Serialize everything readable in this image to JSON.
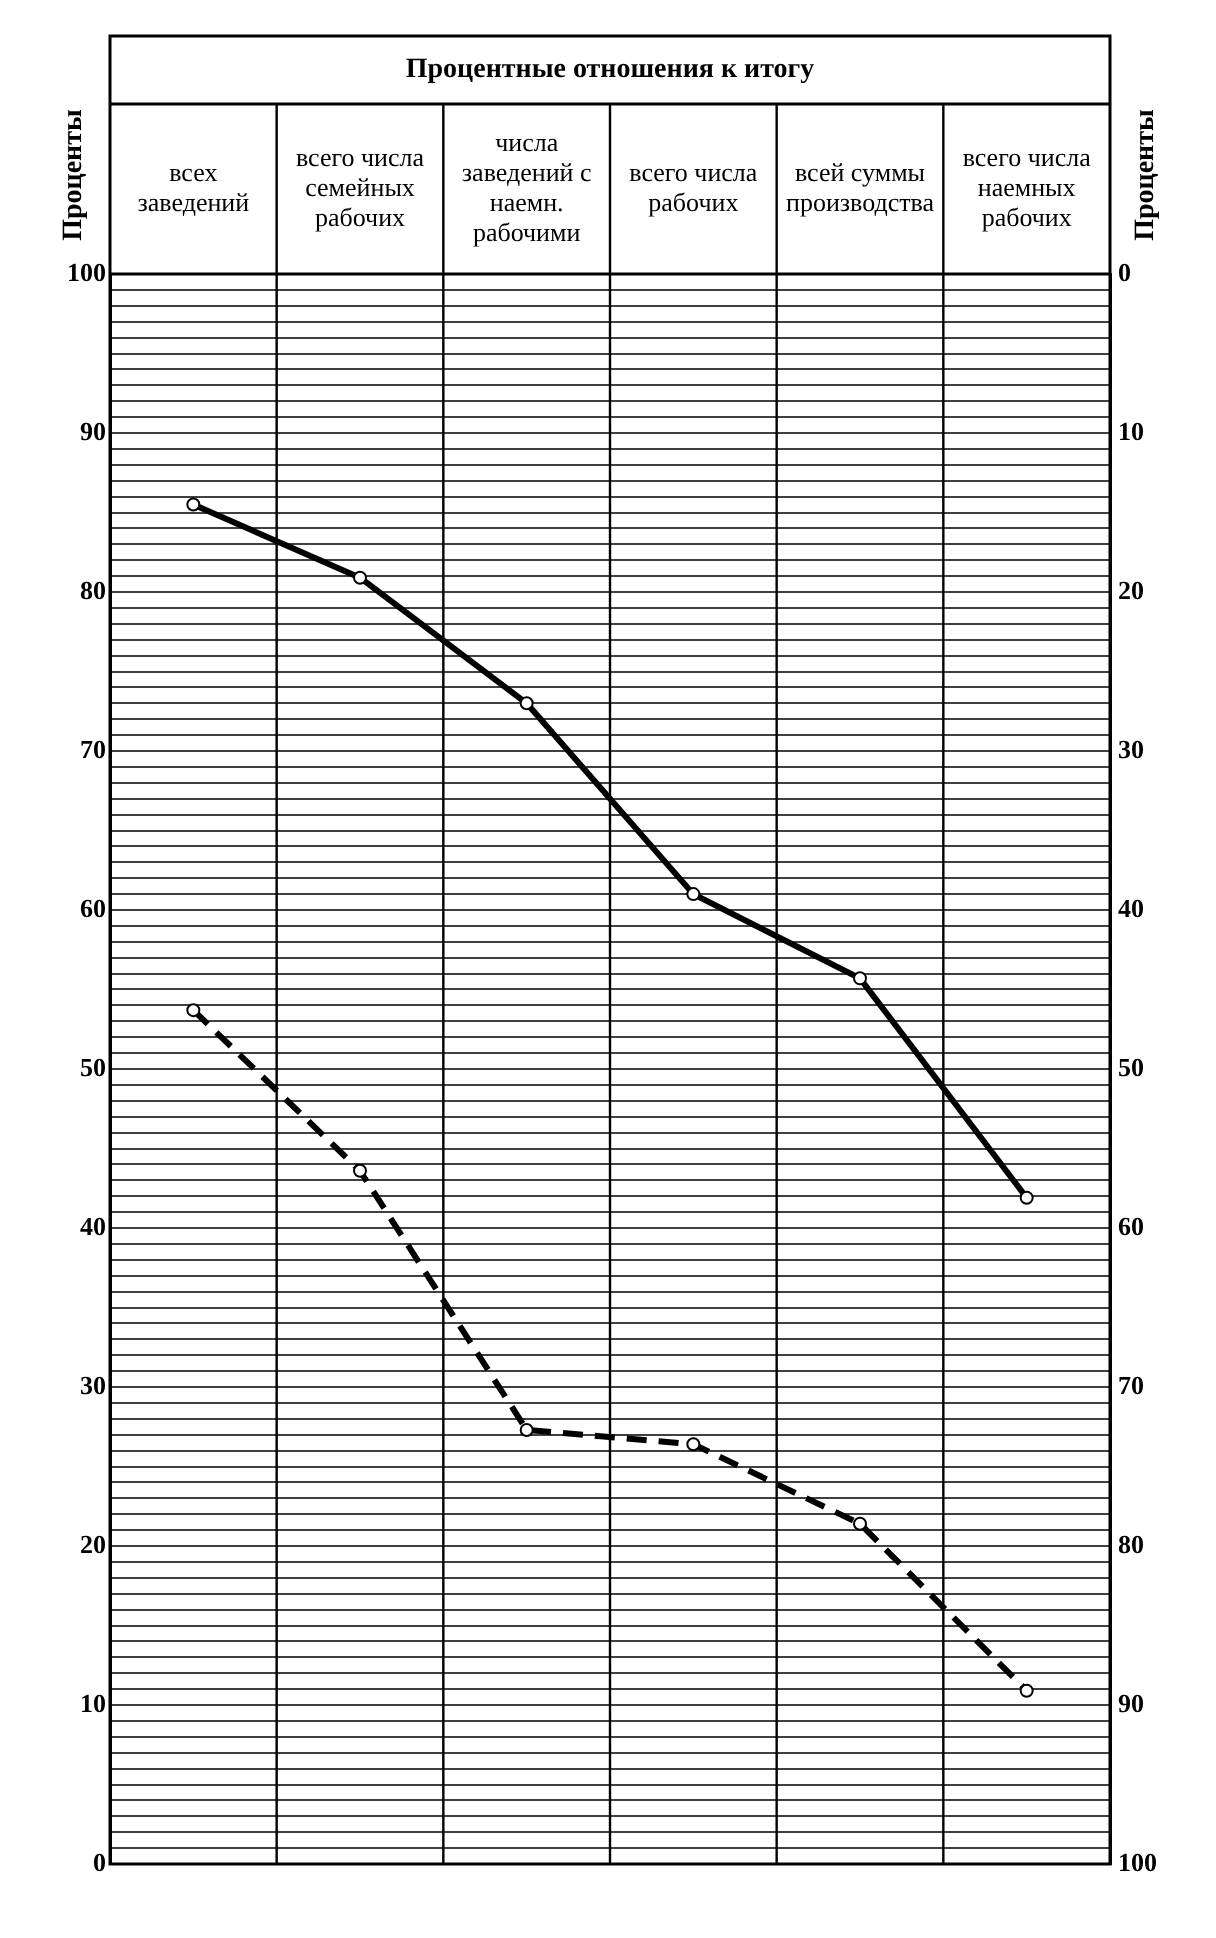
{
  "chart_data": {
    "type": "line",
    "title": "Процентные отношения к итогу",
    "categories": [
      "всех заведений",
      "всего числа семейных рабочих",
      "числа заведений с наемн. рабочими",
      "всего числа рабочих",
      "всей суммы производства",
      "всего числа наемных рабочих"
    ],
    "series": [
      {
        "color": "#000000",
        "values": [
          85.5,
          80.9,
          73.0,
          61.0,
          55.7,
          41.9
        ],
        "line_style": "solid"
      },
      {
        "color": "#000000",
        "values": [
          53.7,
          43.6,
          27.3,
          26.4,
          21.4,
          10.9
        ],
        "line_style": "dashed"
      }
    ],
    "ylabel": "Проценты",
    "y2label": "Проценты",
    "ylim": [
      0,
      100
    ],
    "yticks": [
      0,
      {
        "value": 1,
        "label": null
      },
      {
        "value": 2,
        "label": null
      },
      {
        "value": 3,
        "label": null
      },
      {
        "value": 4,
        "label": null
      },
      {
        "value": 5,
        "label": null
      },
      {
        "value": 6,
        "label": null
      },
      {
        "value": 7,
        "label": null
      },
      {
        "value": 8,
        "label": null
      },
      {
        "value": 9,
        "label": null
      },
      10,
      {
        "value": 11,
        "label": null
      },
      {
        "value": 12,
        "label": null
      },
      {
        "value": 13,
        "label": null
      },
      {
        "value": 14,
        "label": null
      },
      {
        "value": 15,
        "label": null
      },
      {
        "value": 16,
        "label": null
      },
      {
        "value": 17,
        "label": null
      },
      {
        "value": 18,
        "label": null
      },
      {
        "value": 19,
        "label": null
      },
      20,
      {
        "value": 21,
        "label": null
      },
      {
        "value": 22,
        "label": null
      },
      {
        "value": 23,
        "label": null
      },
      {
        "value": 24,
        "label": null
      },
      {
        "value": 25,
        "label": null
      },
      {
        "value": 26,
        "label": null
      },
      {
        "value": 27,
        "label": null
      },
      {
        "value": 28,
        "label": null
      },
      {
        "value": 29,
        "label": null
      },
      30,
      {
        "value": 31,
        "label": null
      },
      {
        "value": 32,
        "label": null
      },
      {
        "value": 33,
        "label": null
      },
      {
        "value": 34,
        "label": null
      },
      {
        "value": 35,
        "label": null
      },
      {
        "value": 36,
        "label": null
      },
      {
        "value": 37,
        "label": null
      },
      {
        "value": 38,
        "label": null
      },
      {
        "value": 39,
        "label": null
      },
      40,
      {
        "value": 41,
        "label": null
      },
      {
        "value": 42,
        "label": null
      },
      {
        "value": 43,
        "label": null
      },
      {
        "value": 44,
        "label": null
      },
      {
        "value": 45,
        "label": null
      },
      {
        "value": 46,
        "label": null
      },
      {
        "value": 47,
        "label": null
      },
      {
        "value": 48,
        "label": null
      },
      {
        "value": 49,
        "label": null
      },
      50,
      {
        "value": 51,
        "label": null
      },
      {
        "value": 52,
        "label": null
      },
      {
        "value": 53,
        "label": null
      },
      {
        "value": 54,
        "label": null
      },
      {
        "value": 55,
        "label": null
      },
      {
        "value": 56,
        "label": null
      },
      {
        "value": 57,
        "label": null
      },
      {
        "value": 58,
        "label": null
      },
      {
        "value": 59,
        "label": null
      },
      60,
      {
        "value": 61,
        "label": null
      },
      {
        "value": 62,
        "label": null
      },
      {
        "value": 63,
        "label": null
      },
      {
        "value": 64,
        "label": null
      },
      {
        "value": 65,
        "label": null
      },
      {
        "value": 66,
        "label": null
      },
      {
        "value": 67,
        "label": null
      },
      {
        "value": 68,
        "label": null
      },
      {
        "value": 69,
        "label": null
      },
      70,
      {
        "value": 71,
        "label": null
      },
      {
        "value": 72,
        "label": null
      },
      {
        "value": 73,
        "label": null
      },
      {
        "value": 74,
        "label": null
      },
      {
        "value": 75,
        "label": null
      },
      {
        "value": 76,
        "label": null
      },
      {
        "value": 77,
        "label": null
      },
      {
        "value": 78,
        "label": null
      },
      {
        "value": 79,
        "label": null
      },
      80,
      {
        "value": 81,
        "label": null
      },
      {
        "value": 82,
        "label": null
      },
      {
        "value": 83,
        "label": null
      },
      {
        "value": 84,
        "label": null
      },
      {
        "value": 85,
        "label": null
      },
      {
        "value": 86,
        "label": null
      },
      {
        "value": 87,
        "label": null
      },
      {
        "value": 88,
        "label": null
      },
      {
        "value": 89,
        "label": null
      },
      90,
      {
        "value": 91,
        "label": null
      },
      {
        "value": 92,
        "label": null
      },
      {
        "value": 93,
        "label": null
      },
      {
        "value": 94,
        "label": null
      },
      {
        "value": 95,
        "label": null
      },
      {
        "value": 96,
        "label": null
      },
      {
        "value": 97,
        "label": null
      },
      {
        "value": 98,
        "label": null
      },
      {
        "value": 99,
        "label": null
      },
      100
    ],
    "y2lim": [
      100,
      0
    ],
    "y2ticks": [
      0,
      10,
      20,
      30,
      40,
      50,
      60,
      70,
      80,
      90,
      100
    ],
    "grid": "y",
    "marker": "circle",
    "legend": false
  }
}
